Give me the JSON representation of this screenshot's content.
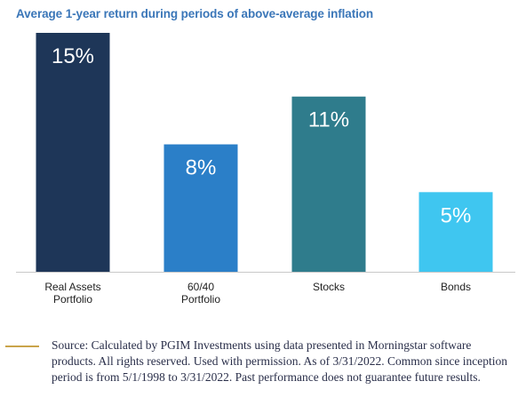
{
  "colors": {
    "title": "#3a76b8",
    "axis": "#c8c8c8",
    "source_rule": "#c9a44a"
  },
  "chart_data": {
    "type": "bar",
    "title": "Average 1-year return during periods of above-average inflation",
    "categories": [
      [
        "Real Assets",
        "Portfolio"
      ],
      [
        "60/40",
        "Portfolio"
      ],
      [
        "Stocks"
      ],
      [
        "Bonds"
      ]
    ],
    "values": [
      15,
      8,
      11,
      5
    ],
    "value_labels": [
      "15%",
      "8%",
      "11%",
      "5%"
    ],
    "bar_colors": [
      "#1e3658",
      "#2b7fc8",
      "#2f7c8c",
      "#3fc6f0"
    ],
    "ylim": [
      0,
      15
    ],
    "grid": false,
    "legend": "none"
  },
  "source": {
    "text": "Source: Calculated by PGIM Investments using data presented in Morningstar software products. All rights reserved. Used with permission. As of 3/31/2022. Common since inception period is from 5/1/1998 to 3/31/2022. Past performance does not guarantee future results."
  }
}
